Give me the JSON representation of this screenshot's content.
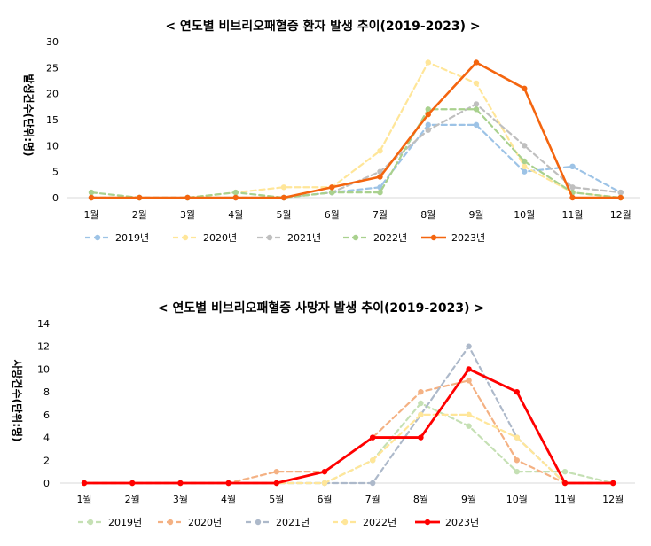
{
  "chart_data": [
    {
      "type": "line",
      "title": "<  연도별 비브리오패혈증 환자 발생 추이(2019-2023)  >",
      "ylabel": "발생건수(단위:명)",
      "xlabel": "",
      "categories": [
        "1월",
        "2월",
        "3월",
        "4월",
        "5월",
        "6월",
        "7월",
        "8월",
        "9월",
        "10월",
        "11월",
        "12월"
      ],
      "ylim": [
        0,
        30
      ],
      "yticks": [
        0,
        5,
        10,
        15,
        20,
        25,
        30
      ],
      "grid": false,
      "legend": "bottom",
      "series": [
        {
          "name": "2019년",
          "color": "#9DC3E6",
          "dashed": true,
          "values": [
            0,
            0,
            0,
            0,
            0,
            1,
            2,
            14,
            14,
            5,
            6,
            1
          ]
        },
        {
          "name": "2020년",
          "color": "#FFE699",
          "dashed": true,
          "values": [
            0,
            0,
            0,
            1,
            2,
            2,
            9,
            26,
            22,
            6,
            1,
            0
          ]
        },
        {
          "name": "2021년",
          "color": "#BFBFBF",
          "dashed": true,
          "values": [
            0,
            0,
            0,
            0,
            0,
            1,
            5,
            13,
            18,
            10,
            2,
            1
          ]
        },
        {
          "name": "2022년",
          "color": "#A9D18E",
          "dashed": true,
          "values": [
            1,
            0,
            0,
            1,
            0,
            1,
            1,
            17,
            17,
            7,
            1,
            0
          ]
        },
        {
          "name": "2023년",
          "color": "#F4650F",
          "dashed": false,
          "values": [
            0,
            0,
            0,
            0,
            0,
            2,
            4,
            16,
            26,
            21,
            0,
            0
          ]
        }
      ]
    },
    {
      "type": "line",
      "title": "<  연도별 비브리오패혈증 사망자 발생 추이(2019-2023)  >",
      "ylabel": "사망건수(단위:명)",
      "xlabel": "",
      "categories": [
        "1월",
        "2월",
        "3월",
        "4월",
        "5월",
        "6월",
        "7월",
        "8월",
        "9월",
        "10월",
        "11월",
        "12월"
      ],
      "ylim": [
        0,
        14
      ],
      "yticks": [
        0,
        2,
        4,
        6,
        8,
        10,
        12,
        14
      ],
      "grid": false,
      "legend": "bottom",
      "series": [
        {
          "name": "2019년",
          "color": "#C5E0B4",
          "dashed": true,
          "values": [
            0,
            0,
            0,
            0,
            0,
            0,
            2,
            7,
            5,
            1,
            1,
            0
          ]
        },
        {
          "name": "2020년",
          "color": "#F4B183",
          "dashed": true,
          "values": [
            0,
            0,
            0,
            0,
            1,
            1,
            4,
            8,
            9,
            2,
            0,
            0
          ]
        },
        {
          "name": "2021년",
          "color": "#ADB9CA",
          "dashed": true,
          "values": [
            0,
            0,
            0,
            0,
            0,
            0,
            0,
            6,
            12,
            4,
            0,
            0
          ]
        },
        {
          "name": "2022년",
          "color": "#FFE699",
          "dashed": true,
          "values": [
            0,
            0,
            0,
            0,
            0,
            0,
            2,
            6,
            6,
            4,
            0,
            0
          ]
        },
        {
          "name": "2023년",
          "color": "#FF0000",
          "dashed": false,
          "values": [
            0,
            0,
            0,
            0,
            0,
            1,
            4,
            4,
            10,
            8,
            0,
            0
          ]
        }
      ]
    }
  ]
}
